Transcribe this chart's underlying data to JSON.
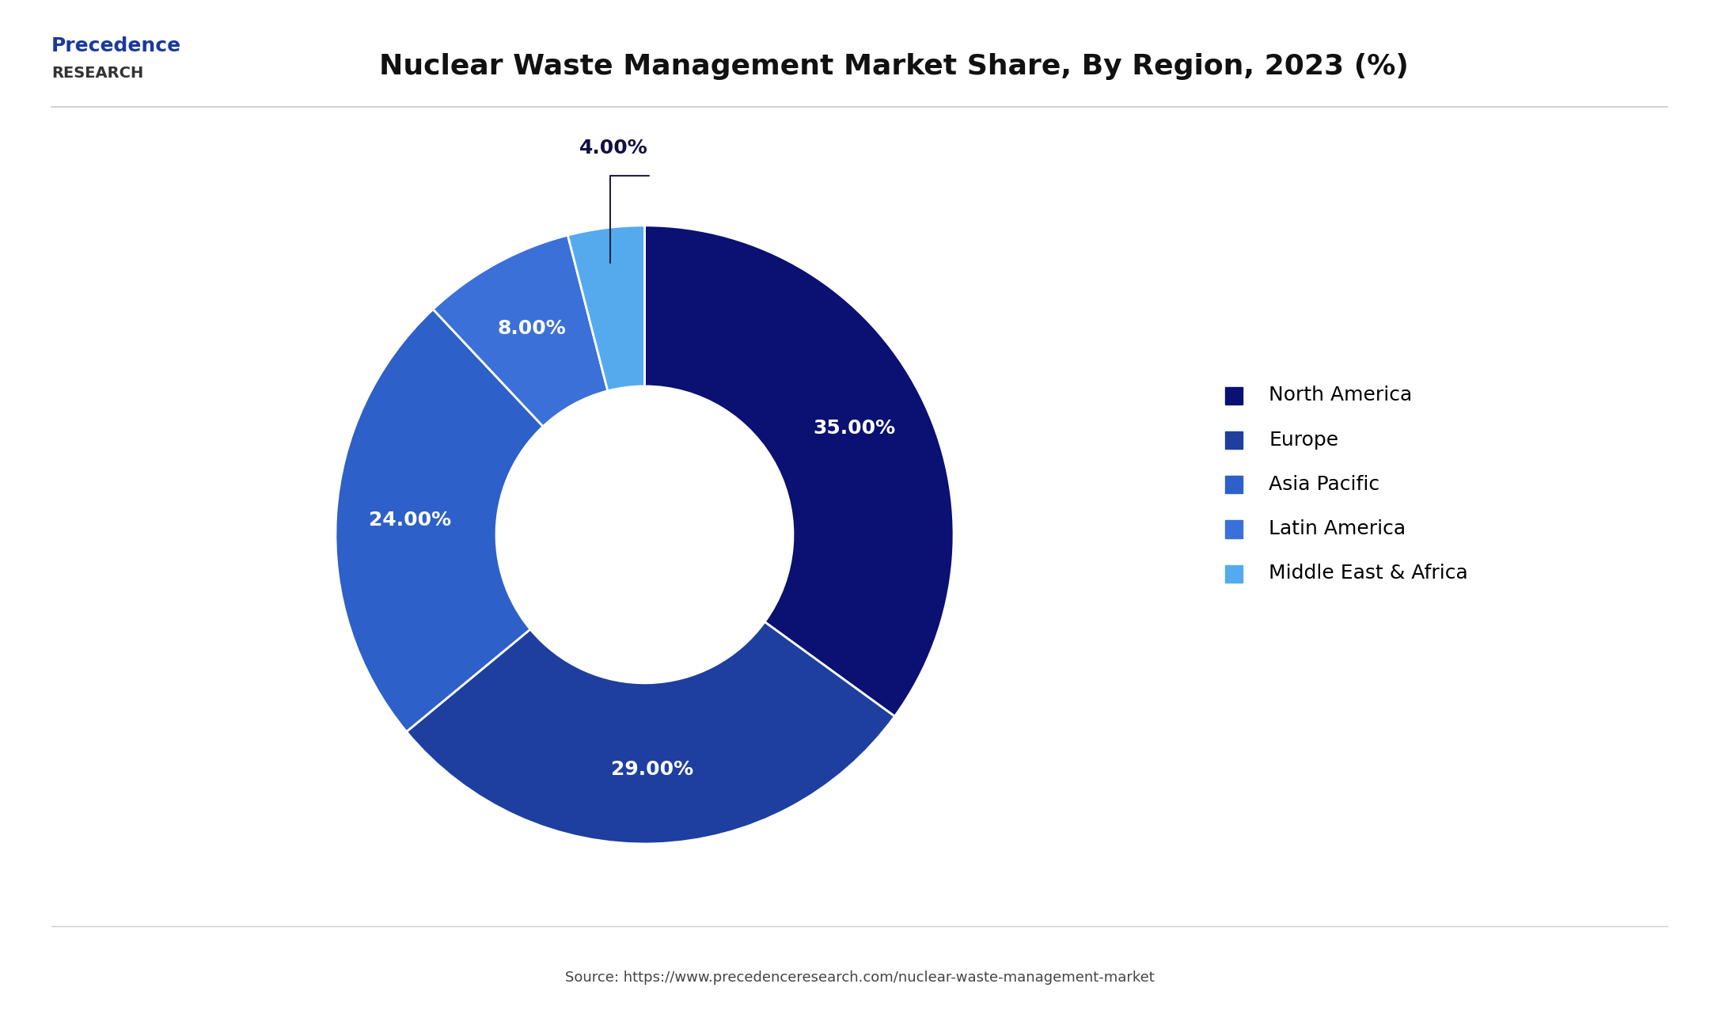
{
  "title": "Nuclear Waste Management Market Share, By Region, 2023 (%)",
  "labels": [
    "North America",
    "Europe",
    "Asia Pacific",
    "Latin America",
    "Middle East & Africa"
  ],
  "values": [
    35,
    29,
    24,
    8,
    4
  ],
  "colors": [
    "#0a1172",
    "#1e3fa0",
    "#2d60c8",
    "#3b70d8",
    "#55aaee"
  ],
  "label_texts": [
    "35.00%",
    "29.00%",
    "24.00%",
    "8.00%",
    "4.00%"
  ],
  "label_colors_inside": [
    "white",
    "white",
    "white",
    "white",
    "white"
  ],
  "source_text": "Source: https://www.precedenceresearch.com/nuclear-waste-management-market",
  "background_color": "#ffffff",
  "title_fontsize": 26,
  "legend_fontsize": 18,
  "label_fontsize": 18,
  "source_fontsize": 13,
  "header_line_color": "#cccccc",
  "logo_text_precedence": "Precedence",
  "logo_text_research": "RESEARCH"
}
